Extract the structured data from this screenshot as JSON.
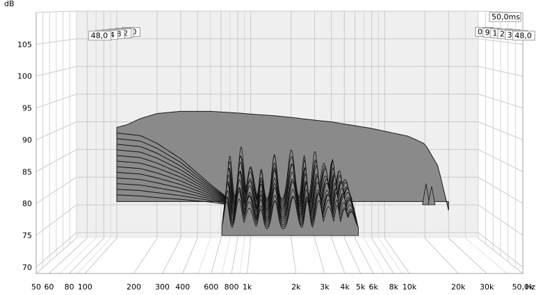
{
  "chart_data": {
    "type": "area",
    "subtype": "cumulative spectral decay (waterfall)",
    "y_unit": "dB",
    "x_unit": "Hz",
    "ylim": [
      69,
      110
    ],
    "xlim": [
      50,
      50000
    ],
    "x_scale": "log",
    "grid": true,
    "time_max_label": "50,0ms",
    "y_ticks": [
      "105",
      "100",
      "95",
      "90",
      "85",
      "80",
      "75",
      "70"
    ],
    "y_tick_values": [
      105,
      100,
      95,
      90,
      85,
      80,
      75,
      70
    ],
    "x_ticks": [
      "50",
      "60",
      "80",
      "100",
      "200",
      "300",
      "400",
      "600",
      "800",
      "1k",
      "2k",
      "3k",
      "4k",
      "5k",
      "6k",
      "8k",
      "10k",
      "20k",
      "30k",
      "50,0k"
    ],
    "x_tick_values": [
      50,
      60,
      80,
      100,
      200,
      300,
      400,
      600,
      800,
      1000,
      2000,
      3000,
      4000,
      5000,
      6000,
      8000,
      10000,
      20000,
      30000,
      50000
    ],
    "time_slices_ms": [
      "0,0",
      "9,6",
      "19,2",
      "28,8",
      "38,4",
      "48,0"
    ],
    "initial_response": {
      "freq_hz": [
        100,
        120,
        150,
        200,
        300,
        500,
        800,
        1000,
        1500,
        2000,
        3000,
        4000,
        5000,
        6000,
        8000,
        10000,
        15000,
        20000,
        25000,
        30000
      ],
      "db": [
        89.0,
        89.5,
        90.6,
        91.5,
        91.9,
        91.9,
        91.6,
        91.4,
        91.1,
        90.8,
        90.3,
        90.0,
        89.6,
        89.3,
        88.8,
        88.3,
        87.4,
        86.0,
        82.0,
        74.0
      ]
    },
    "decay_low_freq": {
      "freq_hz": [
        100,
        150,
        200,
        300,
        500,
        700
      ],
      "db_first_slice": [
        89.0,
        88.5,
        87.0,
        84.0,
        79.0,
        76.0
      ],
      "db_last_slice": [
        76.8,
        76.6,
        76.3,
        76.0,
        75.5,
        75.0
      ]
    },
    "decay_resonances": {
      "peak_freq_hz": [
        700,
        850,
        1000,
        1200,
        1500,
        2000,
        2500,
        3000,
        3500,
        4000,
        4500,
        5000
      ],
      "peak_db": [
        84.0,
        86.0,
        83.0,
        82.5,
        85.0,
        85.5,
        84.0,
        85.0,
        83.5,
        84.5,
        82.0,
        80.0
      ]
    },
    "tweeter_breakup": {
      "freq_hz": [
        20000,
        22000
      ],
      "db": [
        79.0,
        78.5
      ]
    }
  }
}
